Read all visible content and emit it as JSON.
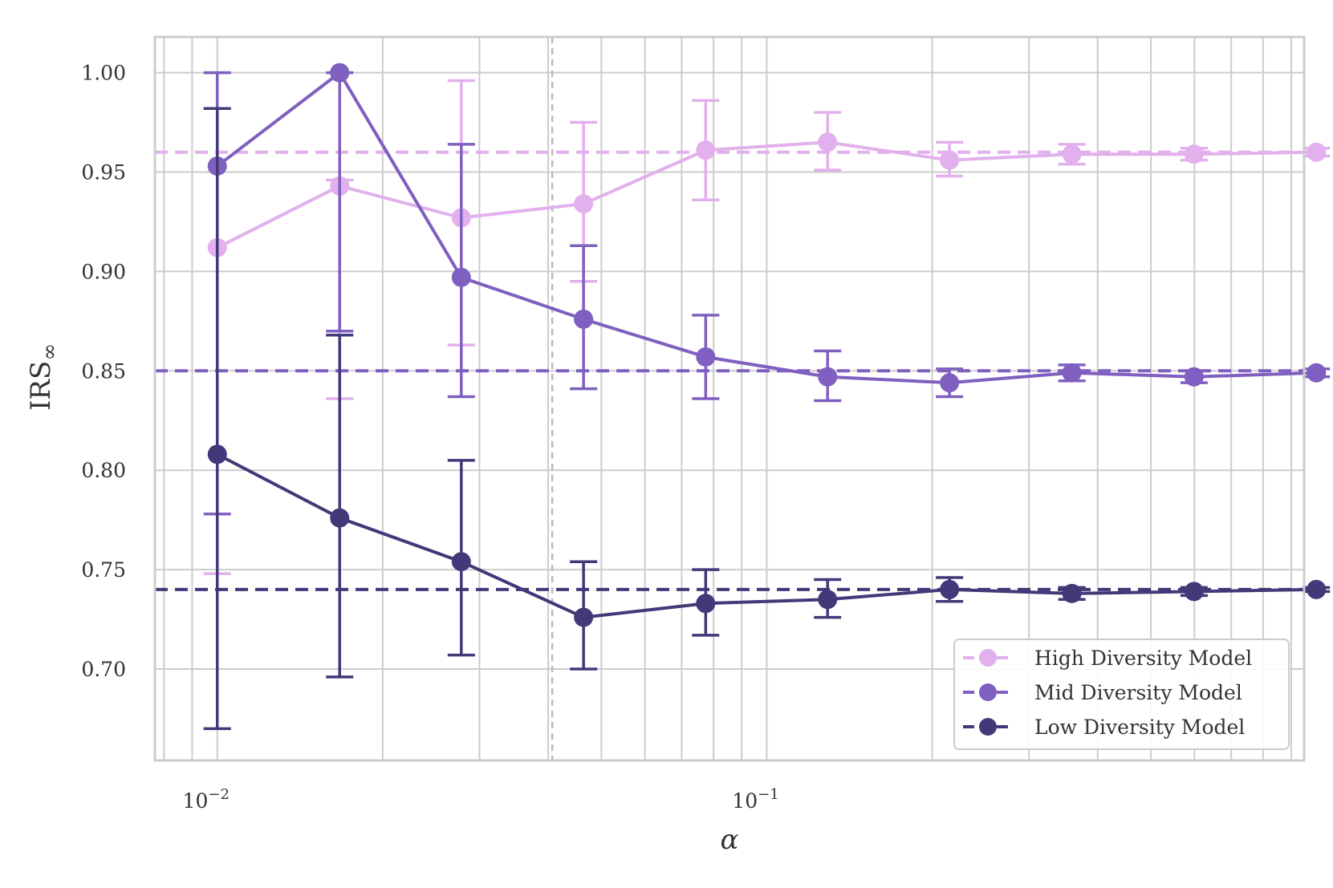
{
  "chart_data": {
    "type": "line",
    "xlabel": "α",
    "ylabel": "IRS",
    "ylabel_sub": "∞",
    "x_scale": "log",
    "xlim": [
      0.0077,
      0.95
    ],
    "ylim": [
      0.654,
      1.018
    ],
    "x_ticks": [
      {
        "value": 0.01,
        "base": "10",
        "exp": "−2"
      },
      {
        "value": 0.1,
        "base": "10",
        "exp": "−1"
      }
    ],
    "y_ticks": [
      {
        "value": 0.7,
        "label": "0.70"
      },
      {
        "value": 0.75,
        "label": "0.75"
      },
      {
        "value": 0.8,
        "label": "0.80"
      },
      {
        "value": 0.85,
        "label": "0.85"
      },
      {
        "value": 0.9,
        "label": "0.90"
      },
      {
        "value": 0.95,
        "label": "0.95"
      },
      {
        "value": 1.0,
        "label": "1.00"
      }
    ],
    "grid": true,
    "vertical_reference_line": 0.0407,
    "legend_position": "lower-right",
    "x": [
      0.01,
      0.0167,
      0.0278,
      0.0464,
      0.0774,
      0.129,
      0.215,
      0.359,
      0.599,
      1.0
    ],
    "series": [
      {
        "name": "High Diversity Model",
        "color": "#e2b0ec",
        "reference": 0.96,
        "y": [
          0.912,
          0.943,
          0.927,
          0.934,
          0.961,
          0.965,
          0.956,
          0.959,
          0.959,
          0.96
        ],
        "yerr_low": [
          0.748,
          0.836,
          0.863,
          0.895,
          0.936,
          0.951,
          0.948,
          0.954,
          0.956,
          0.958
        ],
        "yerr_high": [
          1.0,
          0.946,
          0.996,
          0.975,
          0.986,
          0.98,
          0.965,
          0.964,
          0.962,
          0.962
        ]
      },
      {
        "name": "Mid Diversity Model",
        "color": "#7f5fbf",
        "reference": 0.85,
        "y": [
          0.953,
          1.0,
          0.897,
          0.876,
          0.857,
          0.847,
          0.844,
          0.849,
          0.847,
          0.849
        ],
        "yerr_low": [
          0.778,
          0.87,
          0.837,
          0.841,
          0.836,
          0.835,
          0.837,
          0.845,
          0.844,
          0.847
        ],
        "yerr_high": [
          1.0,
          1.0,
          0.964,
          0.913,
          0.878,
          0.86,
          0.851,
          0.853,
          0.85,
          0.851
        ]
      },
      {
        "name": "Low Diversity Model",
        "color": "#433878",
        "reference": 0.74,
        "y": [
          0.808,
          0.776,
          0.754,
          0.726,
          0.733,
          0.735,
          0.74,
          0.738,
          0.739,
          0.74
        ],
        "yerr_low": [
          0.67,
          0.696,
          0.707,
          0.7,
          0.717,
          0.726,
          0.734,
          0.735,
          0.737,
          0.739
        ],
        "yerr_high": [
          0.982,
          0.868,
          0.805,
          0.754,
          0.75,
          0.745,
          0.746,
          0.741,
          0.741,
          0.741
        ]
      }
    ]
  }
}
